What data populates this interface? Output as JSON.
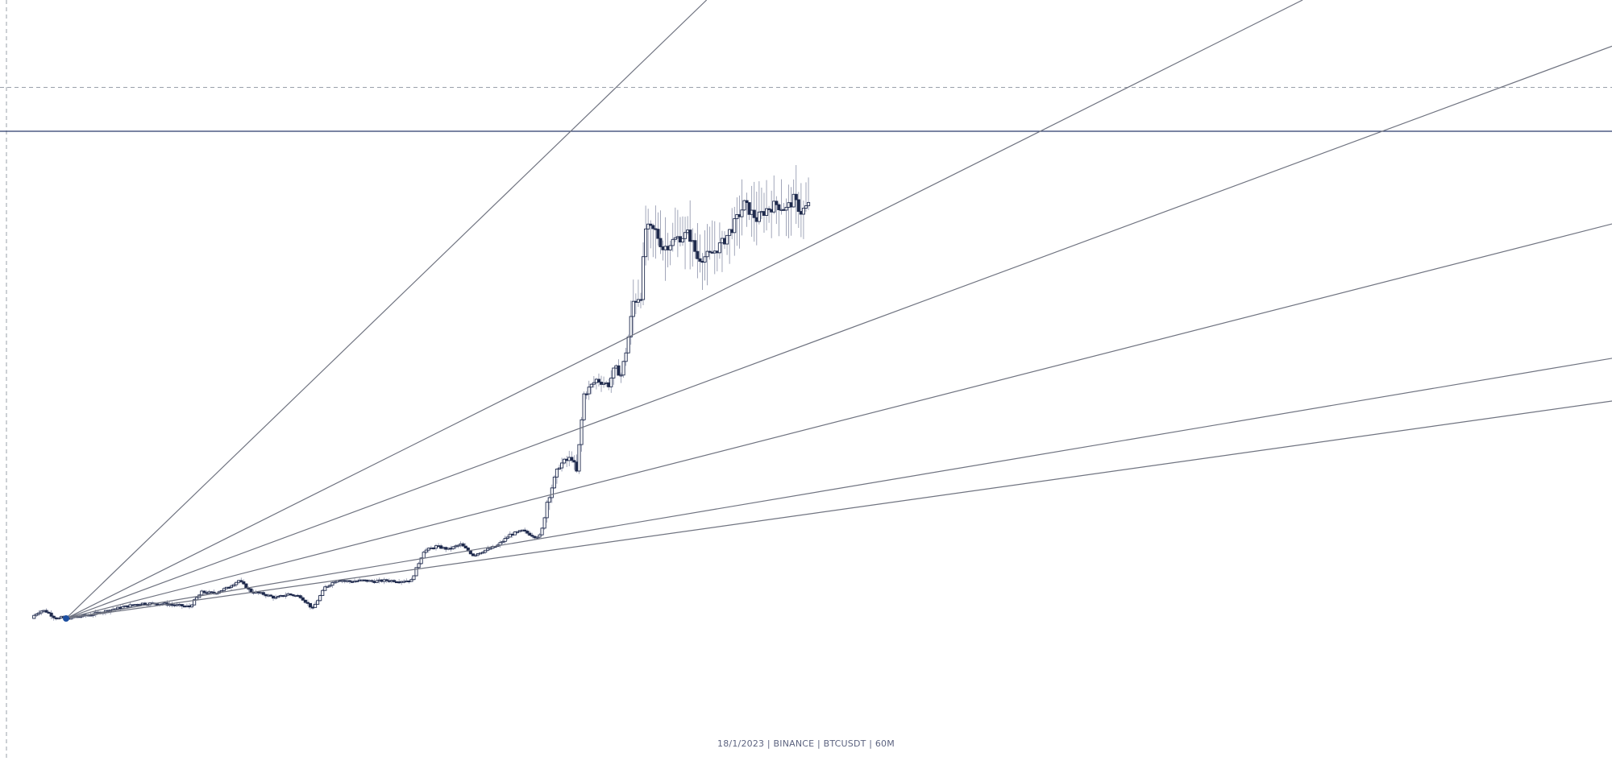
{
  "caption": "18/1/2023 | BINANCE | BTCUSDT | 60M",
  "colors": {
    "background": "#ffffff",
    "candle_outline": "#1f2a4d",
    "candle_up_fill": "#ffffff",
    "candle_down_fill": "#1f2a4d",
    "wick": "#8a90a8",
    "fan_line": "#6f7380",
    "horizontal_level": "#2b3a6b",
    "dashed_level": "#9aa0aa",
    "anchor_point": "#1d4fa0",
    "caption_text": "#5d6480"
  },
  "chart_data": {
    "type": "candlestick",
    "exchange": "BINANCE",
    "symbol": "BTCUSDT",
    "interval": "60M",
    "date": "18/1/2023",
    "x_unit": "bar index",
    "y_unit": "price (unlabelled, 0 = anchor low, 100 = main horizontal level)",
    "xlim": [
      -30,
      680
    ],
    "ylim": [
      -35,
      118
    ],
    "grid": false,
    "legend": "none",
    "horizontal_levels": [
      {
        "style": "solid",
        "value": 100
      },
      {
        "style": "dashed",
        "value": 109
      }
    ],
    "gann_fan": {
      "anchor": {
        "x": 0,
        "y": 0
      },
      "line_slopes_per_bar": [
        0.2444,
        0.1266,
        0.0937,
        0.0646,
        0.0426,
        0.0356
      ]
    },
    "close_path": [
      [
        0,
        0
      ],
      [
        20,
        0.8
      ],
      [
        40,
        2.0
      ],
      [
        60,
        3.1
      ],
      [
        80,
        3.0
      ],
      [
        100,
        2.4
      ],
      [
        110,
        5.4
      ],
      [
        120,
        5.2
      ],
      [
        130,
        6.2
      ],
      [
        140,
        7.8
      ],
      [
        150,
        5.5
      ],
      [
        160,
        5.0
      ],
      [
        170,
        4.2
      ],
      [
        180,
        5.0
      ],
      [
        190,
        4.5
      ],
      [
        200,
        2.0
      ],
      [
        210,
        6.4
      ],
      [
        220,
        8.0
      ],
      [
        230,
        7.6
      ],
      [
        240,
        7.8
      ],
      [
        250,
        7.6
      ],
      [
        260,
        7.8
      ],
      [
        270,
        7.7
      ],
      [
        280,
        7.8
      ],
      [
        290,
        13.8
      ],
      [
        300,
        14.8
      ],
      [
        310,
        14.2
      ],
      [
        320,
        15.2
      ],
      [
        330,
        13.0
      ],
      [
        340,
        14.0
      ],
      [
        350,
        15.0
      ],
      [
        360,
        17.2
      ],
      [
        370,
        18.0
      ],
      [
        380,
        16.8
      ],
      [
        385,
        17.0
      ],
      [
        390,
        24.0
      ],
      [
        400,
        31.5
      ],
      [
        410,
        33.0
      ],
      [
        414,
        30.0
      ],
      [
        420,
        46.0
      ],
      [
        430,
        49.0
      ],
      [
        440,
        48.0
      ],
      [
        445,
        51.5
      ],
      [
        450,
        50.0
      ],
      [
        455,
        56.0
      ],
      [
        460,
        65.0
      ],
      [
        466,
        66.5
      ],
      [
        470,
        80.0
      ],
      [
        478,
        79.5
      ],
      [
        484,
        76.0
      ],
      [
        495,
        78.0
      ],
      [
        505,
        79.0
      ],
      [
        512,
        74.0
      ],
      [
        522,
        74.5
      ],
      [
        532,
        77.0
      ],
      [
        542,
        81.0
      ],
      [
        550,
        85.0
      ],
      [
        560,
        82.0
      ],
      [
        568,
        84.0
      ],
      [
        576,
        85.0
      ],
      [
        584,
        84.0
      ],
      [
        590,
        86.0
      ],
      [
        596,
        83.5
      ],
      [
        603,
        85.0
      ]
    ]
  }
}
